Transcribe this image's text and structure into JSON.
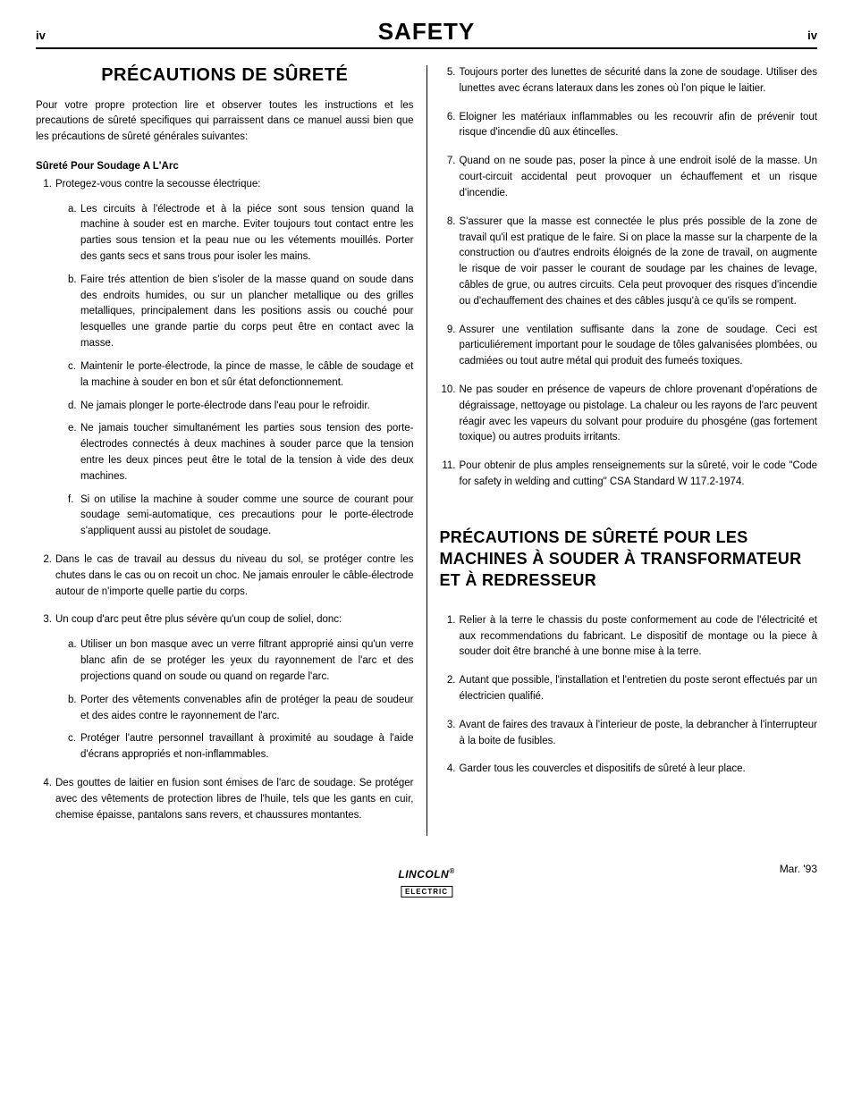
{
  "header": {
    "page_left": "iv",
    "title": "SAFETY",
    "page_right": "iv"
  },
  "left_column": {
    "title": "PRÉCAUTIONS DE SÛRETÉ",
    "intro": "Pour votre propre protection lire et observer toutes les instructions et les precautions de sûreté specifiques qui parraissent dans ce manuel aussi bien que les précautions de sûreté générales suivantes:",
    "subhead": "Sûreté Pour Soudage A L'Arc",
    "items": [
      {
        "num": "1.",
        "text": "Protegez-vous contre la secousse électrique:",
        "sub": [
          {
            "letter": "a.",
            "text": "Les circuits à l'électrode et à la piéce sont sous tension quand la machine à souder est en marche. Eviter toujours tout contact entre les parties sous tension et la peau nue ou les vétements mouillés. Porter des gants secs et sans trous pour isoler les mains."
          },
          {
            "letter": "b.",
            "text": "Faire trés attention de bien s'isoler de la masse quand on soude dans des endroits humides, ou sur un plancher metallique ou des grilles metalliques, principalement dans les positions assis ou couché pour lesquelles une grande partie du corps peut être en contact avec la masse."
          },
          {
            "letter": "c.",
            "text": "Maintenir le porte-électrode, la pince de masse, le câble de soudage et la machine à souder en bon et sûr état defonctionnement."
          },
          {
            "letter": "d.",
            "text": "Ne jamais plonger le porte-électrode dans l'eau pour le refroidir."
          },
          {
            "letter": "e.",
            "text": "Ne jamais toucher simultanément les parties sous tension des porte-électrodes connectés à deux machines à souder parce que la tension entre les deux pinces peut être le total de la tension à vide des deux machines."
          },
          {
            "letter": "f.",
            "text": "Si on utilise la machine à souder comme une source de courant pour soudage semi-automatique, ces precautions pour le porte-électrode s'appliquent aussi au pistolet de soudage."
          }
        ]
      },
      {
        "num": "2.",
        "text": "Dans le cas de travail au dessus du niveau du sol, se protéger contre les chutes dans le cas ou on recoit un choc. Ne jamais enrouler le câble-électrode autour de n'importe quelle partie du corps."
      },
      {
        "num": "3.",
        "text": "Un coup d'arc peut être plus sévère qu'un coup de soliel, donc:",
        "sub": [
          {
            "letter": "a.",
            "text": "Utiliser un bon masque avec un verre filtrant approprié ainsi qu'un verre blanc afin de se protéger les yeux du rayonnement de l'arc et des projections quand on soude ou quand on regarde l'arc."
          },
          {
            "letter": "b.",
            "text": "Porter des vêtements convenables afin de protéger la peau de soudeur et des aides contre le rayonnement de l'arc."
          },
          {
            "letter": "c.",
            "text": "Protéger l'autre personnel travaillant à proximité au soudage à l'aide d'écrans appropriés et non-inflammables."
          }
        ]
      },
      {
        "num": "4.",
        "text": "Des gouttes de laitier en fusion sont émises de l'arc de soudage. Se protéger avec des vêtements de protection libres de l'huile, tels que les gants en cuir, chemise épaisse, pantalons sans revers, et chaussures montantes."
      }
    ]
  },
  "right_column": {
    "items": [
      {
        "num": "5.",
        "text": "Toujours porter des lunettes de sécurité dans la zone de soudage. Utiliser des lunettes avec écrans lateraux dans les zones où l'on pique le laitier."
      },
      {
        "num": "6.",
        "text": "Eloigner les matériaux inflammables ou les recouvrir afin de prévenir tout risque d'incendie dû aux étincelles."
      },
      {
        "num": "7.",
        "text": "Quand on ne soude pas, poser la pince à une endroit isolé de la masse. Un court-circuit accidental peut provoquer un échauffement et un risque d'incendie."
      },
      {
        "num": "8.",
        "text": "S'assurer que la masse est connectée le plus prés possible de la zone de travail qu'il est pratique de le faire. Si on place la masse sur la charpente de la construction ou d'autres endroits éloignés de la zone de travail, on augmente le risque de voir passer le courant de soudage par les chaines de levage, câbles de grue, ou autres circuits. Cela peut provoquer des risques d'incendie ou d'echauffement des chaines et des câbles jusqu'à ce qu'ils se rompent."
      },
      {
        "num": "9.",
        "text": "Assurer une ventilation suffisante dans la zone de soudage. Ceci est particuliérement important pour le soudage de tôles galvanisées plombées, ou cadmiées ou tout autre métal qui produit des fumeés toxiques."
      },
      {
        "num": "10.",
        "text": "Ne pas souder en présence de vapeurs de chlore provenant d'opérations de dégraissage, nettoyage ou pistolage. La chaleur ou les rayons de l'arc peuvent réagir avec les vapeurs du solvant pour produire du phosgéne (gas fortement toxique) ou autres produits irritants."
      },
      {
        "num": "11.",
        "text": "Pour obtenir de plus amples renseignements sur la sûreté, voir le code \"Code for safety in welding and cutting\" CSA Standard W 117.2-1974."
      }
    ],
    "section2_title": "PRÉCAUTIONS DE SÛRETÉ POUR LES MACHINES À SOUDER À TRANSFORMATEUR ET À REDRESSEUR",
    "section2_items": [
      {
        "num": "1.",
        "text": "Relier à la terre le chassis du poste conformement au code de l'électricité et aux recommendations du fabricant. Le dispositif de montage ou la piece à souder doit être branché à une bonne mise à la terre."
      },
      {
        "num": "2.",
        "text": "Autant que possible, l'installation et l'entretien du poste seront effectués par un électricien qualifié."
      },
      {
        "num": "3.",
        "text": "Avant de faires des travaux à l'interieur de poste, la debrancher à l'interrupteur à la boite de fusibles."
      },
      {
        "num": "4.",
        "text": "Garder tous les couvercles et dispositifs de sûreté à leur place."
      }
    ]
  },
  "footer": {
    "date": "Mar. '93",
    "logo_top": "LINCOLN",
    "logo_bottom": "ELECTRIC"
  }
}
